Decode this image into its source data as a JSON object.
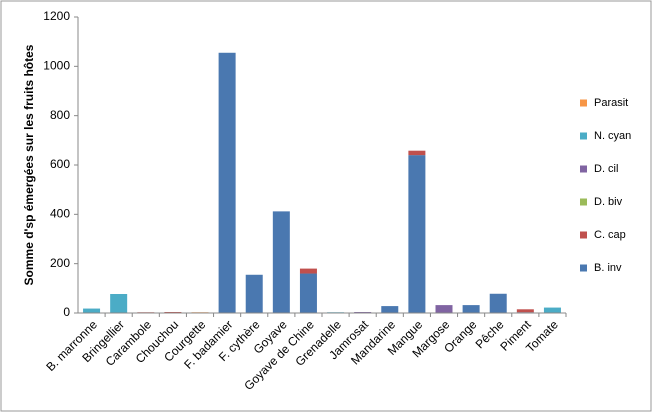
{
  "chart_data": {
    "type": "stacked_bar",
    "y_label": "Somme d'sp émergées sur les fruits hôtes",
    "categories": [
      "B. marronne",
      "Bringellier",
      "Carambole",
      "Chouchou",
      "Courgette",
      "F. badamier",
      "F. cythère",
      "Goyave",
      "Goyave de Chine",
      "Grenadelle",
      "Jamrosat",
      "Mandarine",
      "Mangue",
      "Margose",
      "Orange",
      "Pêche",
      "Piment",
      "Tomate"
    ],
    "series": [
      {
        "name": "B. inv",
        "color": "#4a78b0",
        "values": [
          0,
          0,
          0,
          0,
          0,
          1055,
          155,
          412,
          160,
          0,
          0,
          28,
          640,
          0,
          32,
          78,
          3,
          0
        ]
      },
      {
        "name": "C. cap",
        "color": "#c0504d",
        "values": [
          0,
          0,
          3,
          4,
          0,
          0,
          0,
          0,
          20,
          0,
          0,
          0,
          18,
          0,
          0,
          0,
          12,
          0
        ]
      },
      {
        "name": "D. biv",
        "color": "#9bbb59",
        "values": [
          0,
          0,
          0,
          0,
          0,
          0,
          0,
          0,
          0,
          0,
          0,
          0,
          0,
          0,
          0,
          0,
          0,
          0
        ]
      },
      {
        "name": "D. cil",
        "color": "#8064a2",
        "values": [
          0,
          0,
          0,
          0,
          0,
          0,
          0,
          0,
          0,
          0,
          4,
          0,
          0,
          32,
          0,
          0,
          0,
          0
        ]
      },
      {
        "name": "N. cyan",
        "color": "#4bacc6",
        "values": [
          18,
          77,
          0,
          0,
          0,
          0,
          0,
          0,
          0,
          3,
          0,
          0,
          0,
          0,
          0,
          0,
          0,
          22
        ]
      },
      {
        "name": "Parasit",
        "color": "#f79646",
        "values": [
          0,
          0,
          0,
          0,
          3,
          0,
          0,
          0,
          0,
          0,
          0,
          0,
          0,
          0,
          0,
          0,
          0,
          0
        ]
      }
    ],
    "ylim": [
      0,
      1200
    ],
    "yticks": [
      0,
      200,
      400,
      600,
      800,
      1000,
      1200
    ],
    "grid": false,
    "legend": "right"
  }
}
